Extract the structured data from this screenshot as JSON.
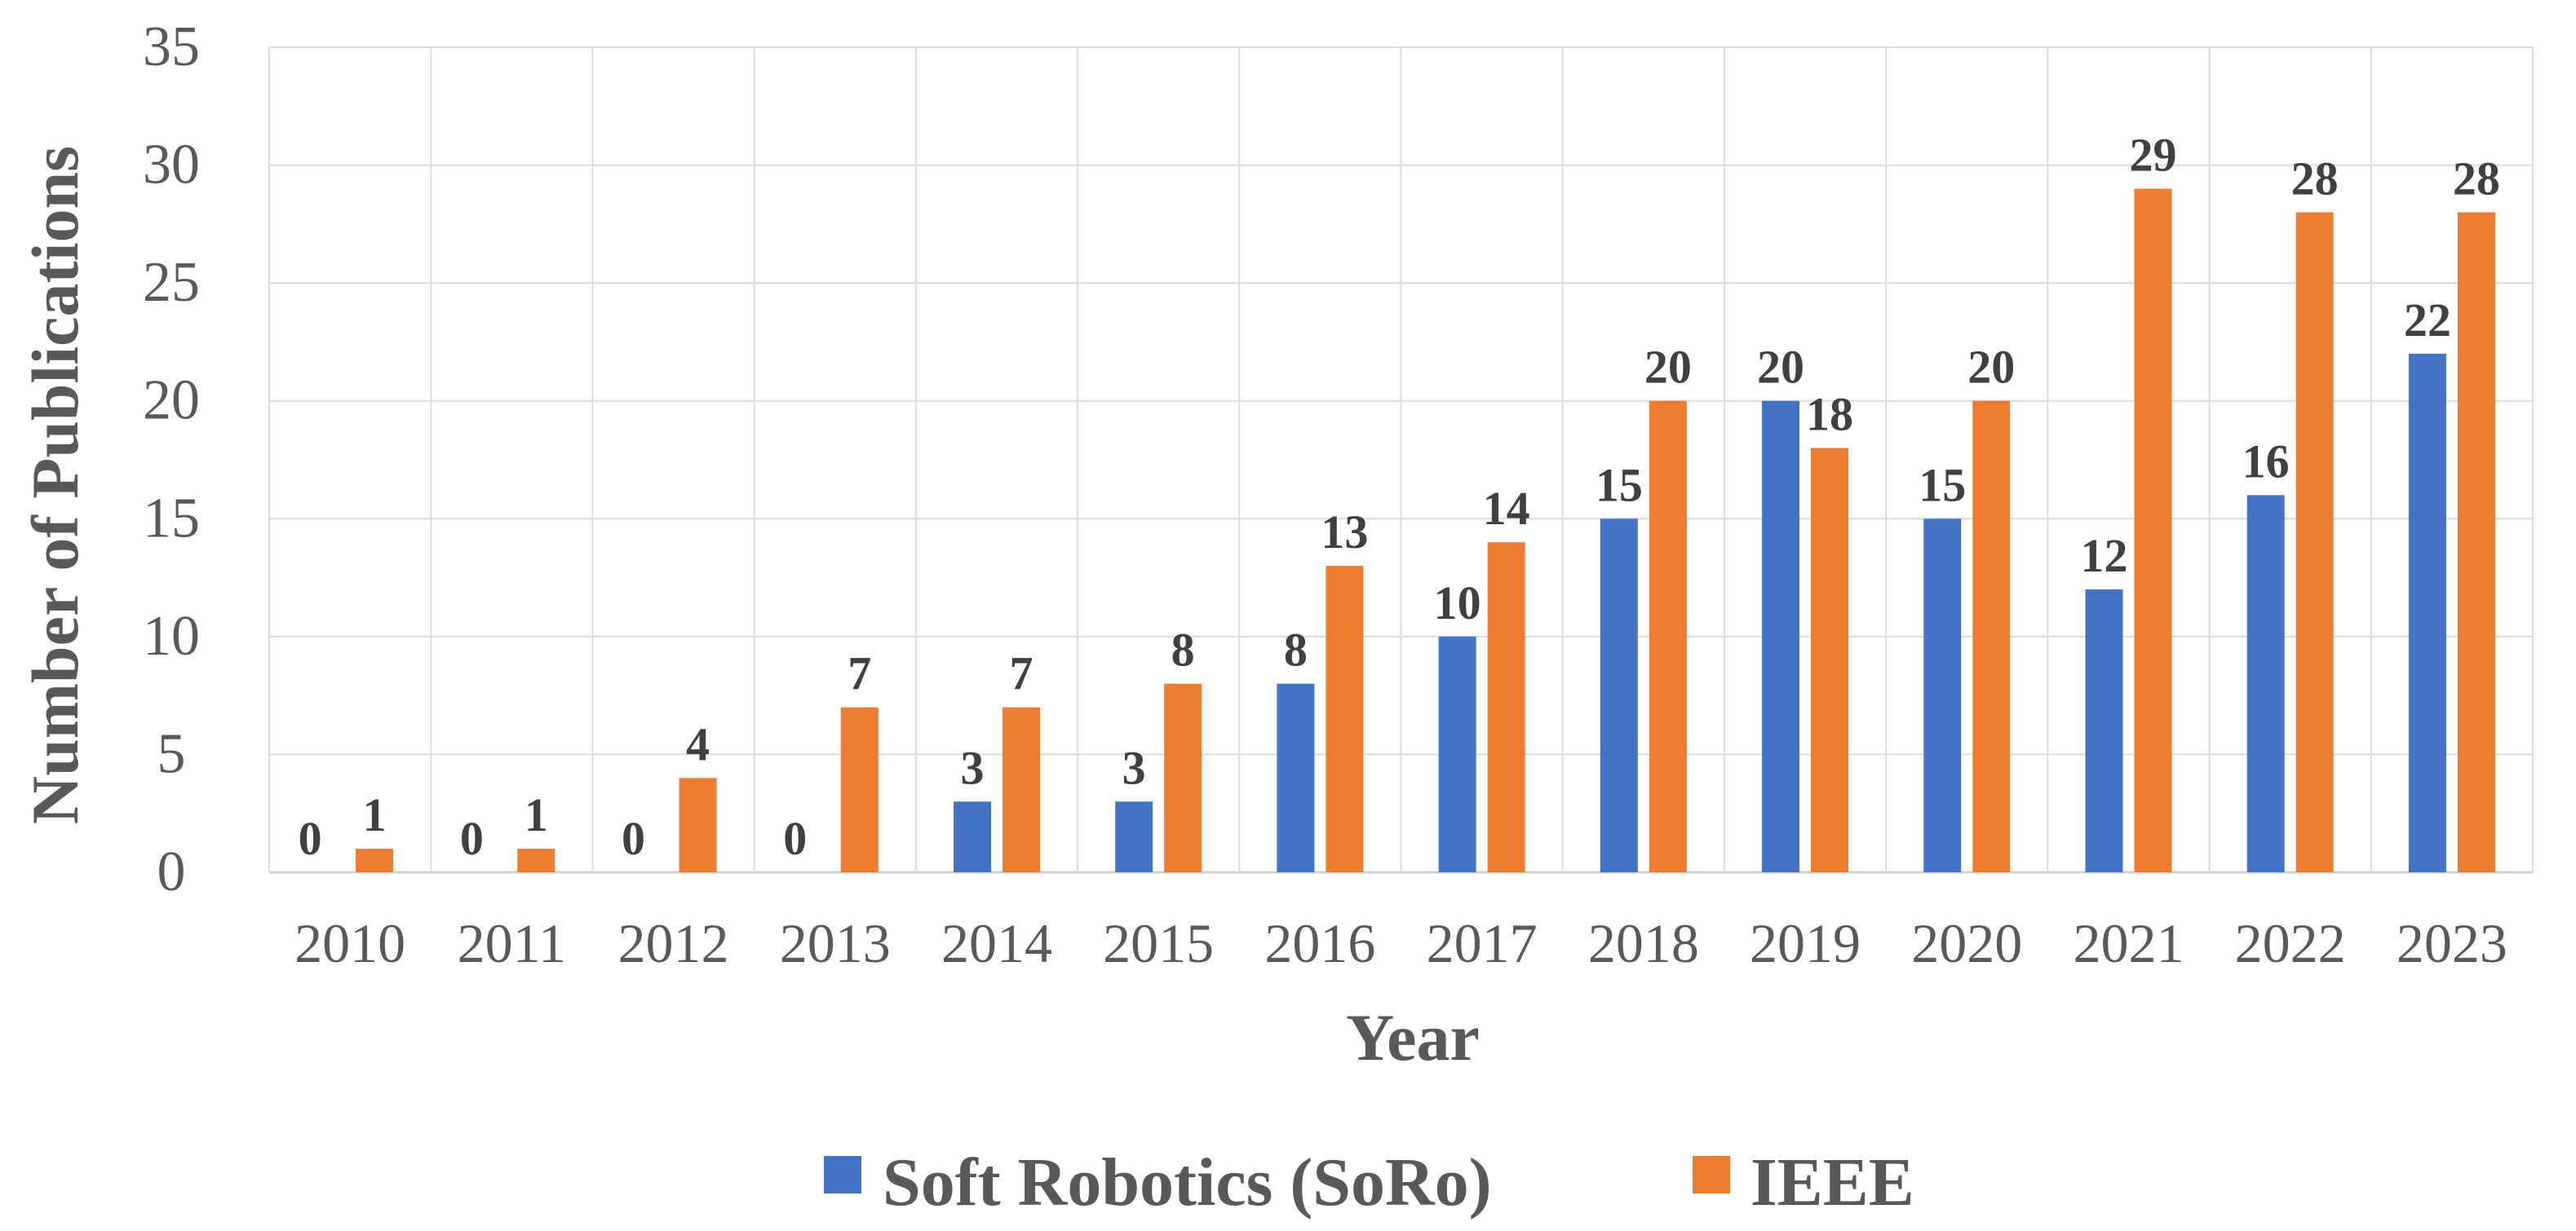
{
  "chart_data": {
    "type": "bar",
    "title": "",
    "xlabel": "Year",
    "ylabel": "Number of Publications",
    "ylim": [
      0,
      35
    ],
    "ytick_step": 5,
    "grid": true,
    "legend_position": "bottom",
    "categories": [
      "2010",
      "2011",
      "2012",
      "2013",
      "2014",
      "2015",
      "2016",
      "2017",
      "2018",
      "2019",
      "2020",
      "2021",
      "2022",
      "2023"
    ],
    "series": [
      {
        "name": "Soft Robotics (SoRo)",
        "color": "#4472C4",
        "values": [
          0,
          0,
          0,
          0,
          3,
          3,
          8,
          10,
          15,
          20,
          15,
          12,
          16,
          22
        ]
      },
      {
        "name": "IEEE",
        "color": "#ED7D31",
        "values": [
          1,
          1,
          4,
          7,
          7,
          8,
          13,
          14,
          20,
          18,
          20,
          29,
          28,
          28
        ]
      }
    ]
  }
}
